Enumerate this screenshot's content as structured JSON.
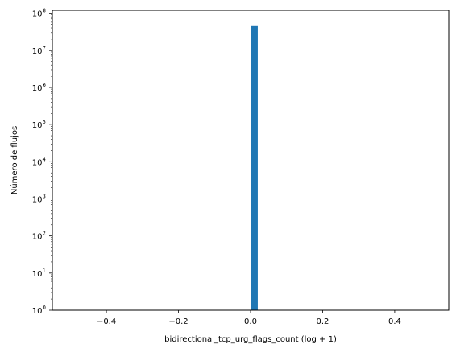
{
  "chart_data": {
    "type": "bar",
    "title": "",
    "xlabel": "bidirectional_tcp_urg_flags_count (log + 1)",
    "ylabel": "Número de flujos",
    "yscale": "log",
    "xlim": [
      -0.55,
      0.55
    ],
    "ylim": [
      1,
      120000000
    ],
    "x_ticks": [
      -0.4,
      -0.2,
      0.0,
      0.2,
      0.4
    ],
    "x_tick_labels": [
      "−0.4",
      "−0.2",
      "0.0",
      "0.2",
      "0.4"
    ],
    "y_ticks": [
      1,
      10,
      100,
      1000,
      10000,
      100000,
      1000000,
      10000000,
      100000000
    ],
    "y_tick_labels": [
      {
        "base": "10",
        "exp": "0"
      },
      {
        "base": "10",
        "exp": "1"
      },
      {
        "base": "10",
        "exp": "2"
      },
      {
        "base": "10",
        "exp": "3"
      },
      {
        "base": "10",
        "exp": "4"
      },
      {
        "base": "10",
        "exp": "5"
      },
      {
        "base": "10",
        "exp": "6"
      },
      {
        "base": "10",
        "exp": "7"
      },
      {
        "base": "10",
        "exp": "8"
      }
    ],
    "bars": [
      {
        "x0": 0.0,
        "x1": 0.02,
        "count": 47000000
      }
    ],
    "bar_color": "#1f77b4",
    "grid": false
  }
}
